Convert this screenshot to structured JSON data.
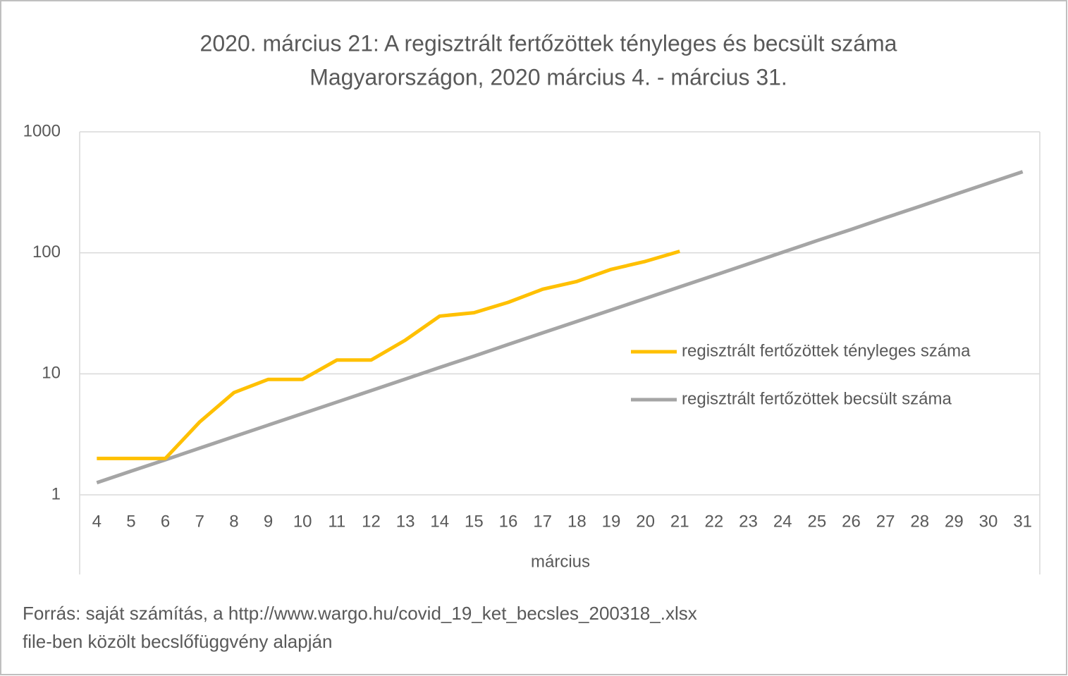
{
  "chart_data": {
    "type": "line",
    "title": [
      "2020. március 21: A regisztrált fertőzöttek tényleges és becsült száma",
      "Magyarországon, 2020 március 4. - március 31."
    ],
    "x_label": "március",
    "source": [
      "Forrás: saját számítás, a http://www.wargo.hu/covid_19_ket_becsles_200318_.xlsx",
      "file-ben közölt becslőfüggvény alapján"
    ],
    "categories": [
      "4",
      "5",
      "6",
      "7",
      "8",
      "9",
      "10",
      "11",
      "12",
      "13",
      "14",
      "15",
      "16",
      "17",
      "18",
      "19",
      "20",
      "21",
      "22",
      "23",
      "24",
      "25",
      "26",
      "27",
      "28",
      "29",
      "30",
      "31"
    ],
    "series": [
      {
        "name": "regisztrált fertőzöttek tényleges száma",
        "color": "#ffc000",
        "values": [
          2,
          2,
          2,
          4,
          7,
          9,
          9,
          13,
          13,
          19,
          30,
          32,
          39,
          50,
          58,
          73,
          85,
          103,
          null,
          null,
          null,
          null,
          null,
          null,
          null,
          null,
          null,
          null
        ]
      },
      {
        "name": "regisztrált fertőzöttek becsült száma",
        "color": "#a5a5a5",
        "values": [
          1.26,
          1.57,
          1.95,
          2.43,
          3.03,
          3.77,
          4.69,
          5.84,
          7.27,
          9.05,
          11.3,
          14,
          17.5,
          21.8,
          27.1,
          33.7,
          42,
          52.3,
          65,
          81,
          101,
          126,
          156,
          195,
          242,
          302,
          376,
          468
        ]
      }
    ],
    "ylim": [
      1,
      1000
    ],
    "yticks": [
      1,
      10,
      100,
      1000
    ],
    "log_y": true,
    "grid": true,
    "legend": "right"
  }
}
